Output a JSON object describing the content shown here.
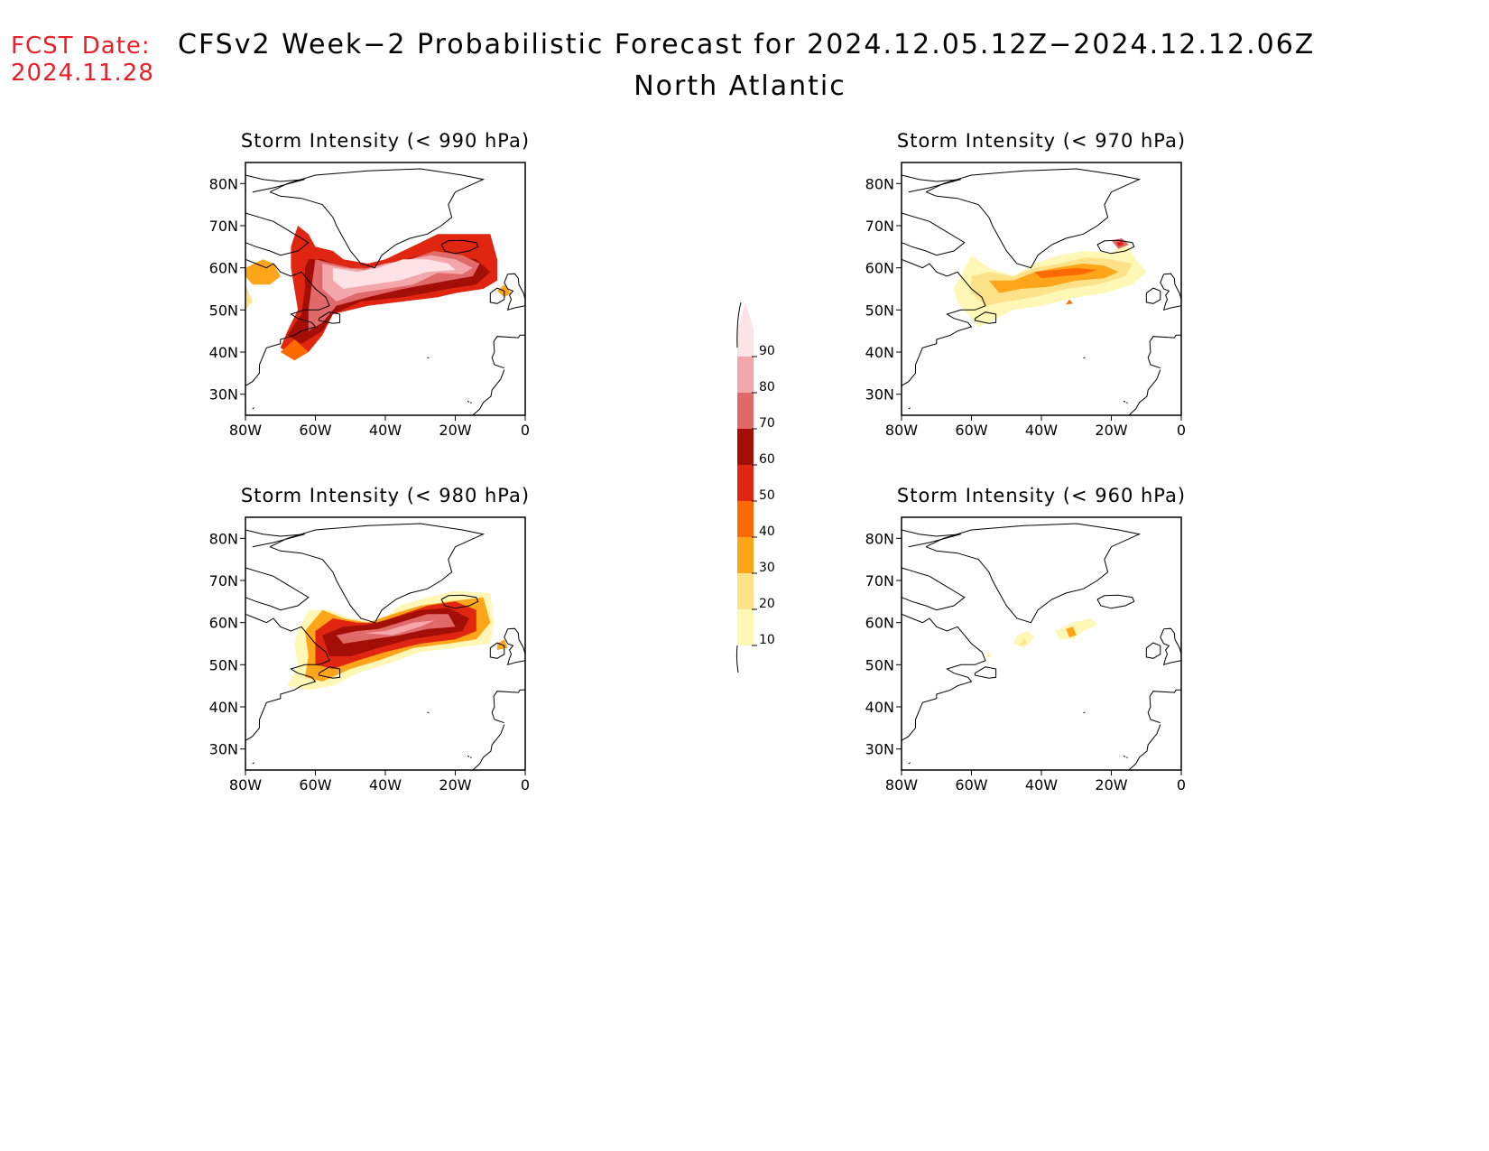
{
  "header": {
    "fcst_label": "FCST Date:",
    "fcst_date": "2024.11.28",
    "title": "CFSv2 Week−2 Probabilistic Forecast for 2024.12.05.12Z−2024.12.12.06Z",
    "subtitle": "North Atlantic"
  },
  "axes": {
    "lat_labels": [
      "80N",
      "70N",
      "60N",
      "50N",
      "40N",
      "30N"
    ],
    "lon_labels": [
      "80W",
      "60W",
      "40W",
      "20W",
      "0"
    ]
  },
  "panels": [
    {
      "id": "p990",
      "title": "Storm Intensity (< 990 hPa)"
    },
    {
      "id": "p970",
      "title": "Storm Intensity (< 970 hPa)"
    },
    {
      "id": "p980",
      "title": "Storm Intensity (< 980 hPa)"
    },
    {
      "id": "p960",
      "title": "Storm Intensity (< 960 hPa)"
    }
  ],
  "colorbar": {
    "levels": [
      "10",
      "20",
      "30",
      "40",
      "50",
      "60",
      "70",
      "80",
      "90"
    ],
    "colors": [
      "#fff7b5",
      "#fde28a",
      "#ffa51a",
      "#ff6a00",
      "#e02510",
      "#a30f06",
      "#e06a6a",
      "#f4a7ab",
      "#fde3e6"
    ]
  },
  "palette": {
    "lvl10": "#fff7b5",
    "lvl20": "#fde28a",
    "lvl30": "#ffa51a",
    "lvl40": "#ff6a00",
    "lvl50": "#e02510",
    "lvl60": "#a30f06",
    "lvl70": "#e06a6a",
    "lvl80": "#f4a7ab",
    "lvl90": "#fde3e6"
  }
}
